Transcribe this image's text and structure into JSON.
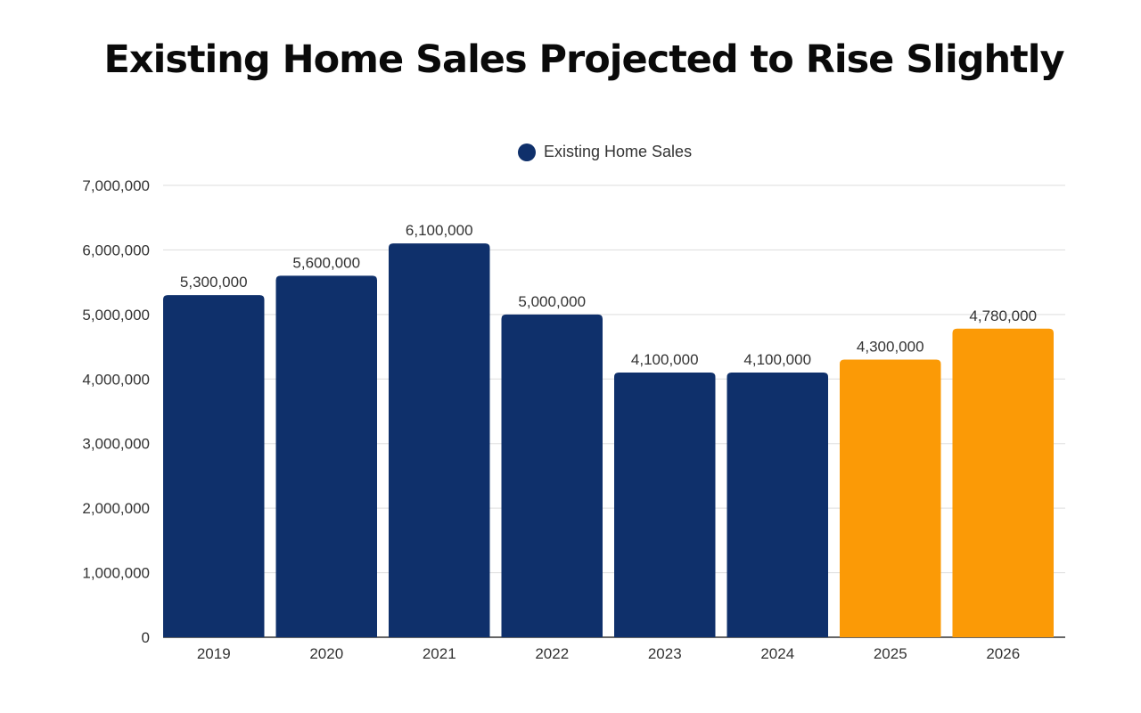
{
  "chart_data": {
    "type": "bar",
    "title": "Existing Home Sales Projected to Rise Slightly",
    "categories": [
      "2019",
      "2020",
      "2021",
      "2022",
      "2023",
      "2024",
      "2025",
      "2026"
    ],
    "series": [
      {
        "name": "Existing Home Sales",
        "values": [
          5300000,
          5600000,
          6100000,
          5000000,
          4100000,
          4100000,
          4300000,
          4780000
        ],
        "data_labels": [
          "5,300,000",
          "5,600,000",
          "6,100,000",
          "5,000,000",
          "4,100,000",
          "4,100,000",
          "4,300,000",
          "4,780,000"
        ]
      }
    ],
    "ylim": [
      0,
      7000000
    ],
    "yticks": [
      0,
      1000000,
      2000000,
      3000000,
      4000000,
      5000000,
      6000000,
      7000000
    ],
    "ytick_labels": [
      "0",
      "1,000,000",
      "2,000,000",
      "3,000,000",
      "4,000,000",
      "5,000,000",
      "6,000,000",
      "7,000,000"
    ],
    "grid": true,
    "legend_placement": "top-center",
    "colors": {
      "actual": "#0f306b",
      "projected": "#fb9a06",
      "grid": "#dddddd",
      "text": "#333333"
    },
    "projected_categories": [
      "2025",
      "2026"
    ]
  }
}
